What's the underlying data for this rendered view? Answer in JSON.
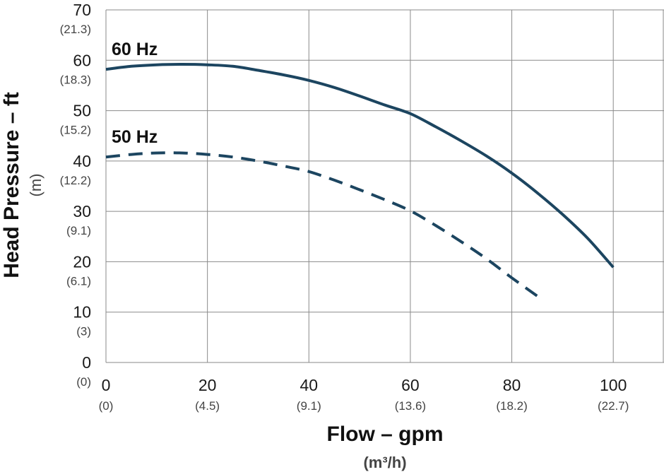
{
  "chart_data": {
    "type": "line",
    "xlabel": "Flow – gpm",
    "xlabel_unit": "(m³/h)",
    "ylabel": "Head Pressure – ft",
    "ylabel_unit": "(m)",
    "xlim": [
      0,
      110
    ],
    "ylim": [
      0,
      70
    ],
    "grid": true,
    "x_ticks": [
      {
        "value": 0,
        "label": "0",
        "sublabel": "(0)"
      },
      {
        "value": 20,
        "label": "20",
        "sublabel": "(4.5)"
      },
      {
        "value": 40,
        "label": "40",
        "sublabel": "(9.1)"
      },
      {
        "value": 60,
        "label": "60",
        "sublabel": "(13.6)"
      },
      {
        "value": 80,
        "label": "80",
        "sublabel": "(18.2)"
      },
      {
        "value": 100,
        "label": "100",
        "sublabel": "(22.7)"
      }
    ],
    "y_ticks": [
      {
        "value": 0,
        "label": "0",
        "sublabel": "(0)"
      },
      {
        "value": 10,
        "label": "10",
        "sublabel": "(3)"
      },
      {
        "value": 20,
        "label": "20",
        "sublabel": "(6.1)"
      },
      {
        "value": 30,
        "label": "30",
        "sublabel": "(9.1)"
      },
      {
        "value": 40,
        "label": "40",
        "sublabel": "(12.2)"
      },
      {
        "value": 50,
        "label": "50",
        "sublabel": "(15.2)"
      },
      {
        "value": 60,
        "label": "60",
        "sublabel": "(18.3)"
      },
      {
        "value": 70,
        "label": "70",
        "sublabel": "(21.3)"
      }
    ],
    "series": [
      {
        "name": "60 Hz",
        "style": "solid",
        "color": "#1c4560",
        "x": [
          0,
          5,
          10,
          15,
          20,
          25,
          30,
          35,
          40,
          45,
          50,
          55,
          60,
          65,
          70,
          75,
          80,
          85,
          90,
          95,
          100
        ],
        "y": [
          58.2,
          58.8,
          59.1,
          59.2,
          59.1,
          58.8,
          58.0,
          57.1,
          56.0,
          54.6,
          52.9,
          51.1,
          49.4,
          46.8,
          44.0,
          41.0,
          37.6,
          33.7,
          29.4,
          24.6,
          18.9
        ]
      },
      {
        "name": "50 Hz",
        "style": "dashed",
        "color": "#1c4560",
        "x": [
          0,
          5,
          10,
          15,
          20,
          25,
          30,
          35,
          40,
          45,
          50,
          55,
          60,
          65,
          70,
          75,
          80,
          85
        ],
        "y": [
          40.8,
          41.3,
          41.6,
          41.6,
          41.3,
          40.8,
          40.0,
          39.0,
          37.9,
          36.2,
          34.3,
          32.3,
          30.1,
          27.2,
          24.0,
          20.6,
          16.8,
          13.2
        ]
      }
    ]
  }
}
